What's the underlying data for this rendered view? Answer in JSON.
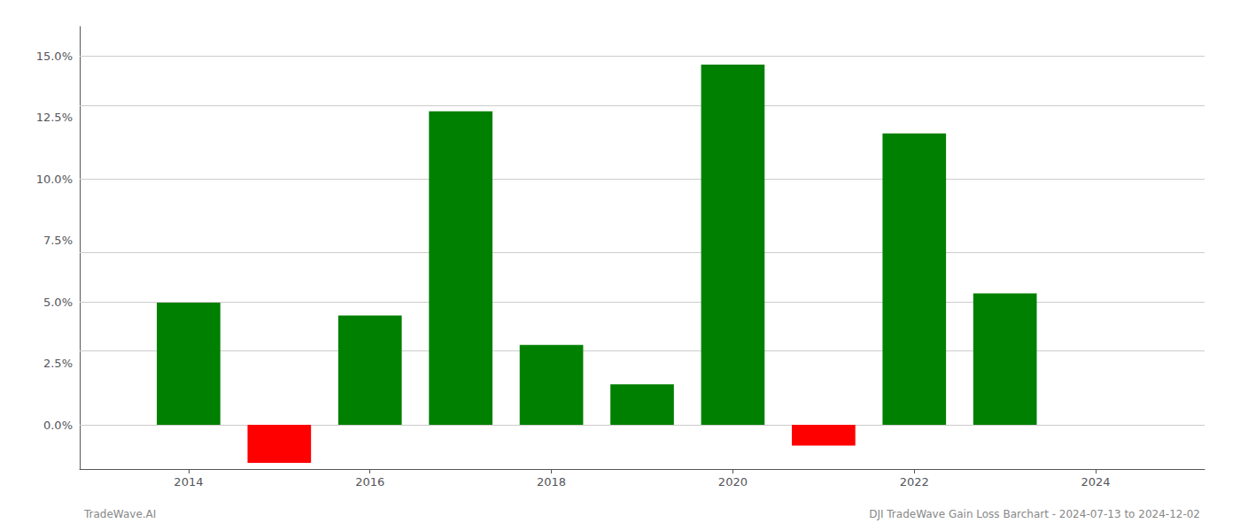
{
  "chart_data": {
    "type": "bar",
    "title": "DJI TradeWave Gain Loss Barchart - 2024-07-13 to 2024-12-02",
    "annotations": [
      "TradeWave.AI"
    ],
    "x": [
      2014,
      2015,
      2016,
      2017,
      2018,
      2019,
      2020,
      2021,
      2022,
      2023
    ],
    "values": [
      0.0497,
      -0.0155,
      0.0445,
      0.1275,
      0.0325,
      0.0165,
      0.1465,
      -0.0085,
      0.1185,
      0.0535
    ],
    "colors": [
      "#008000",
      "#ff0000",
      "#008000",
      "#008000",
      "#008000",
      "#008000",
      "#008000",
      "#ff0000",
      "#008000",
      "#008000"
    ],
    "xlim": [
      2012.8,
      2025.2
    ],
    "xticks": [
      2014,
      2016,
      2018,
      2020,
      2022,
      2024
    ],
    "ylim": [
      -0.018,
      0.162
    ],
    "yticks": [
      {
        "value": 0.0,
        "label": "0.0%"
      },
      {
        "value": 0.025,
        "label": "2.5%"
      },
      {
        "value": 0.05,
        "label": "5.0%"
      },
      {
        "value": 0.075,
        "label": "7.5%"
      },
      {
        "value": 0.1,
        "label": "10.0%"
      },
      {
        "value": 0.125,
        "label": "12.5%"
      },
      {
        "value": 0.15,
        "label": "15.0%"
      }
    ],
    "grid": true
  }
}
